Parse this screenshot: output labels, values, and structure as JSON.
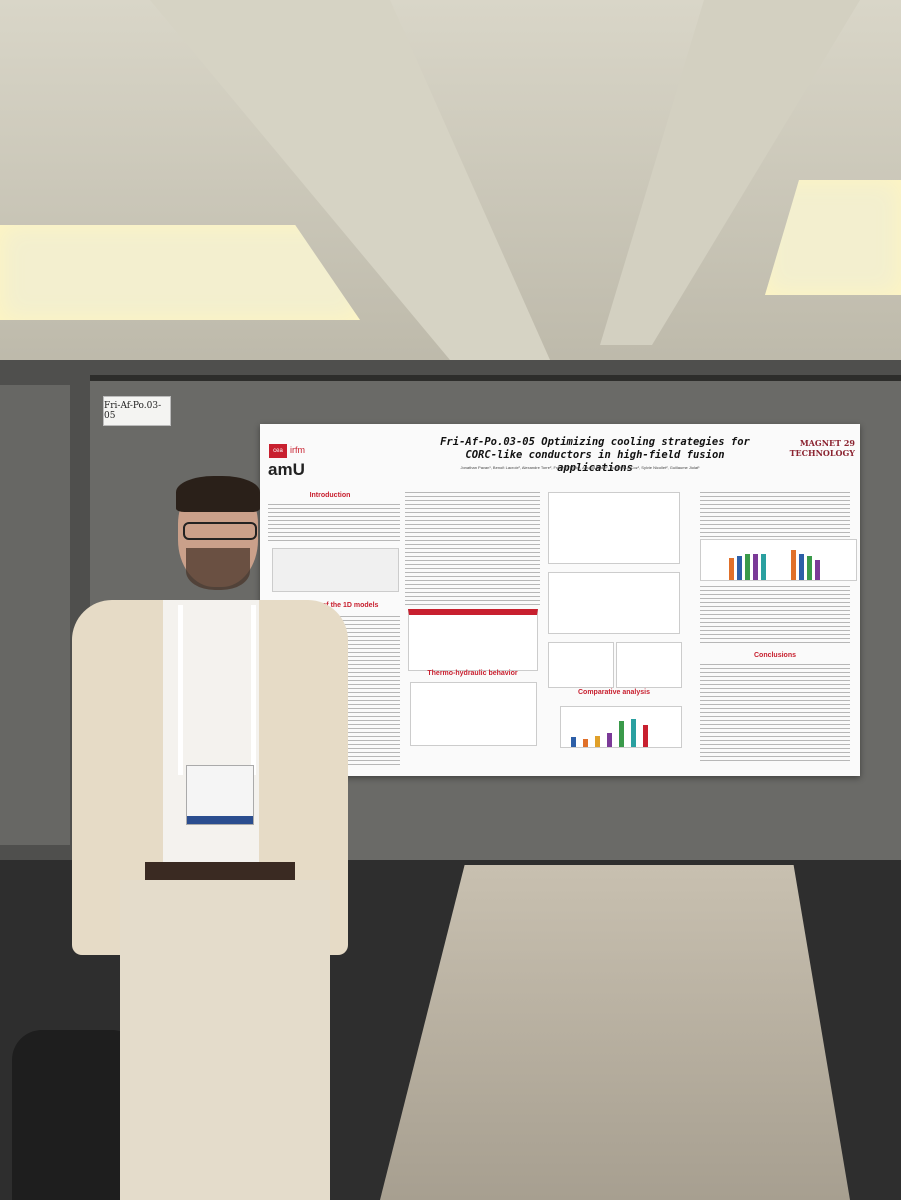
{
  "booth_label": "Fri-Af-Po.03-05",
  "poster": {
    "title": "Fri-Af-Po.03-05 Optimizing cooling strategies for CORC-like conductors in high-field fusion applications",
    "authors": "Jonathan Pavan¹, Benoît Lacroix², Alexandre Torre², Frédéric Topin¹, Arnaud Bodel², Quentin Le Coz¹, Sylvie Nicollet², Guillaume Jiolat¹",
    "logos": {
      "cea": "cea",
      "irfm": "irfm",
      "amu": "amU",
      "conference": "MAGNET 29 TECHNOLOGY"
    },
    "sections": {
      "intro": "Introduction",
      "models": "Description of the 1D models",
      "thermo": "Thermo-hydraulic behavior",
      "comparative": "Comparative analysis",
      "conclusions": "Conclusions"
    }
  },
  "colors": {
    "accent": "#c8202f",
    "bar_blue": "#2d5fa8",
    "bar_orange": "#e0702a",
    "bar_green": "#3a9a4a",
    "bar_purple": "#7b3a98",
    "bar_teal": "#2aa0a0"
  }
}
